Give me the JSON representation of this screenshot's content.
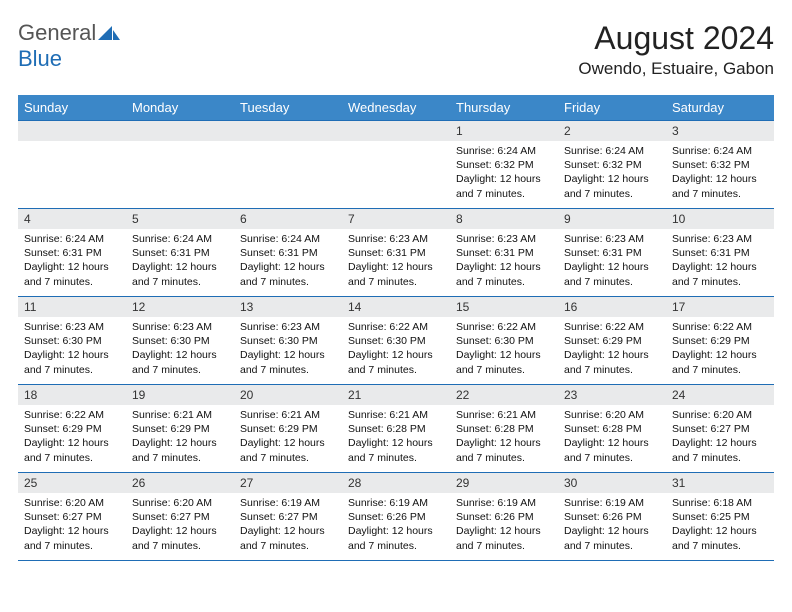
{
  "logo": {
    "word1": "General",
    "word2": "Blue"
  },
  "title": "August 2024",
  "location": "Owendo, Estuaire, Gabon",
  "colors": {
    "header_bg": "#3b87c8",
    "header_text": "#ffffff",
    "cell_border": "#1f6db5",
    "daynum_bg": "#e9eaeb",
    "logo_gray": "#555555",
    "logo_blue": "#1f6db5"
  },
  "days_of_week": [
    "Sunday",
    "Monday",
    "Tuesday",
    "Wednesday",
    "Thursday",
    "Friday",
    "Saturday"
  ],
  "weeks": [
    [
      {
        "n": "",
        "lines": []
      },
      {
        "n": "",
        "lines": []
      },
      {
        "n": "",
        "lines": []
      },
      {
        "n": "",
        "lines": []
      },
      {
        "n": "1",
        "lines": [
          "Sunrise: 6:24 AM",
          "Sunset: 6:32 PM",
          "Daylight: 12 hours and 7 minutes."
        ]
      },
      {
        "n": "2",
        "lines": [
          "Sunrise: 6:24 AM",
          "Sunset: 6:32 PM",
          "Daylight: 12 hours and 7 minutes."
        ]
      },
      {
        "n": "3",
        "lines": [
          "Sunrise: 6:24 AM",
          "Sunset: 6:32 PM",
          "Daylight: 12 hours and 7 minutes."
        ]
      }
    ],
    [
      {
        "n": "4",
        "lines": [
          "Sunrise: 6:24 AM",
          "Sunset: 6:31 PM",
          "Daylight: 12 hours and 7 minutes."
        ]
      },
      {
        "n": "5",
        "lines": [
          "Sunrise: 6:24 AM",
          "Sunset: 6:31 PM",
          "Daylight: 12 hours and 7 minutes."
        ]
      },
      {
        "n": "6",
        "lines": [
          "Sunrise: 6:24 AM",
          "Sunset: 6:31 PM",
          "Daylight: 12 hours and 7 minutes."
        ]
      },
      {
        "n": "7",
        "lines": [
          "Sunrise: 6:23 AM",
          "Sunset: 6:31 PM",
          "Daylight: 12 hours and 7 minutes."
        ]
      },
      {
        "n": "8",
        "lines": [
          "Sunrise: 6:23 AM",
          "Sunset: 6:31 PM",
          "Daylight: 12 hours and 7 minutes."
        ]
      },
      {
        "n": "9",
        "lines": [
          "Sunrise: 6:23 AM",
          "Sunset: 6:31 PM",
          "Daylight: 12 hours and 7 minutes."
        ]
      },
      {
        "n": "10",
        "lines": [
          "Sunrise: 6:23 AM",
          "Sunset: 6:31 PM",
          "Daylight: 12 hours and 7 minutes."
        ]
      }
    ],
    [
      {
        "n": "11",
        "lines": [
          "Sunrise: 6:23 AM",
          "Sunset: 6:30 PM",
          "Daylight: 12 hours and 7 minutes."
        ]
      },
      {
        "n": "12",
        "lines": [
          "Sunrise: 6:23 AM",
          "Sunset: 6:30 PM",
          "Daylight: 12 hours and 7 minutes."
        ]
      },
      {
        "n": "13",
        "lines": [
          "Sunrise: 6:23 AM",
          "Sunset: 6:30 PM",
          "Daylight: 12 hours and 7 minutes."
        ]
      },
      {
        "n": "14",
        "lines": [
          "Sunrise: 6:22 AM",
          "Sunset: 6:30 PM",
          "Daylight: 12 hours and 7 minutes."
        ]
      },
      {
        "n": "15",
        "lines": [
          "Sunrise: 6:22 AM",
          "Sunset: 6:30 PM",
          "Daylight: 12 hours and 7 minutes."
        ]
      },
      {
        "n": "16",
        "lines": [
          "Sunrise: 6:22 AM",
          "Sunset: 6:29 PM",
          "Daylight: 12 hours and 7 minutes."
        ]
      },
      {
        "n": "17",
        "lines": [
          "Sunrise: 6:22 AM",
          "Sunset: 6:29 PM",
          "Daylight: 12 hours and 7 minutes."
        ]
      }
    ],
    [
      {
        "n": "18",
        "lines": [
          "Sunrise: 6:22 AM",
          "Sunset: 6:29 PM",
          "Daylight: 12 hours and 7 minutes."
        ]
      },
      {
        "n": "19",
        "lines": [
          "Sunrise: 6:21 AM",
          "Sunset: 6:29 PM",
          "Daylight: 12 hours and 7 minutes."
        ]
      },
      {
        "n": "20",
        "lines": [
          "Sunrise: 6:21 AM",
          "Sunset: 6:29 PM",
          "Daylight: 12 hours and 7 minutes."
        ]
      },
      {
        "n": "21",
        "lines": [
          "Sunrise: 6:21 AM",
          "Sunset: 6:28 PM",
          "Daylight: 12 hours and 7 minutes."
        ]
      },
      {
        "n": "22",
        "lines": [
          "Sunrise: 6:21 AM",
          "Sunset: 6:28 PM",
          "Daylight: 12 hours and 7 minutes."
        ]
      },
      {
        "n": "23",
        "lines": [
          "Sunrise: 6:20 AM",
          "Sunset: 6:28 PM",
          "Daylight: 12 hours and 7 minutes."
        ]
      },
      {
        "n": "24",
        "lines": [
          "Sunrise: 6:20 AM",
          "Sunset: 6:27 PM",
          "Daylight: 12 hours and 7 minutes."
        ]
      }
    ],
    [
      {
        "n": "25",
        "lines": [
          "Sunrise: 6:20 AM",
          "Sunset: 6:27 PM",
          "Daylight: 12 hours and 7 minutes."
        ]
      },
      {
        "n": "26",
        "lines": [
          "Sunrise: 6:20 AM",
          "Sunset: 6:27 PM",
          "Daylight: 12 hours and 7 minutes."
        ]
      },
      {
        "n": "27",
        "lines": [
          "Sunrise: 6:19 AM",
          "Sunset: 6:27 PM",
          "Daylight: 12 hours and 7 minutes."
        ]
      },
      {
        "n": "28",
        "lines": [
          "Sunrise: 6:19 AM",
          "Sunset: 6:26 PM",
          "Daylight: 12 hours and 7 minutes."
        ]
      },
      {
        "n": "29",
        "lines": [
          "Sunrise: 6:19 AM",
          "Sunset: 6:26 PM",
          "Daylight: 12 hours and 7 minutes."
        ]
      },
      {
        "n": "30",
        "lines": [
          "Sunrise: 6:19 AM",
          "Sunset: 6:26 PM",
          "Daylight: 12 hours and 7 minutes."
        ]
      },
      {
        "n": "31",
        "lines": [
          "Sunrise: 6:18 AM",
          "Sunset: 6:25 PM",
          "Daylight: 12 hours and 7 minutes."
        ]
      }
    ]
  ]
}
